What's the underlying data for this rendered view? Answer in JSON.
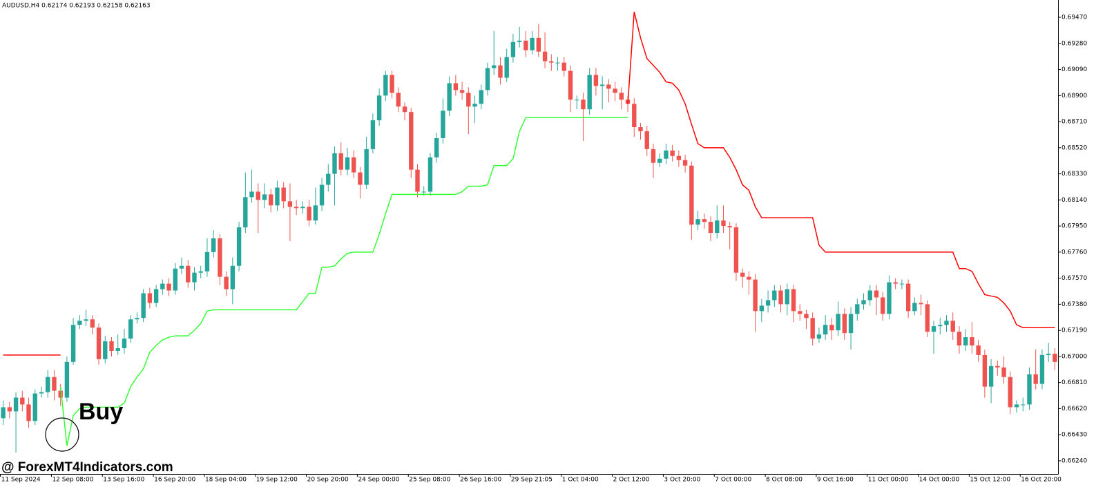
{
  "chart_data": {
    "type": "candlestick",
    "title": "AUDUSD,H4  0.62174 0.62193 0.62158 0.62163",
    "buy_label": "Buy",
    "watermark": "@ ForexMT4Indicators.com",
    "up_color": "#26a69a",
    "down_color": "#ef5350",
    "ylim": [
      0.66144,
      0.69596
    ],
    "yticks": [
      {
        "value": 0.6624,
        "label": "0.66240"
      },
      {
        "value": 0.6643,
        "label": "0.66430"
      },
      {
        "value": 0.6662,
        "label": "0.66620"
      },
      {
        "value": 0.6681,
        "label": "0.66810"
      },
      {
        "value": 0.67,
        "label": "0.67000"
      },
      {
        "value": 0.6719,
        "label": "0.67190"
      },
      {
        "value": 0.6738,
        "label": "0.67380"
      },
      {
        "value": 0.6757,
        "label": "0.67570"
      },
      {
        "value": 0.6776,
        "label": "0.67760"
      },
      {
        "value": 0.6795,
        "label": "0.67950"
      },
      {
        "value": 0.6814,
        "label": "0.68140"
      },
      {
        "value": 0.6833,
        "label": "0.68330"
      },
      {
        "value": 0.6852,
        "label": "0.68520"
      },
      {
        "value": 0.6871,
        "label": "0.68710"
      },
      {
        "value": 0.689,
        "label": "0.68900"
      },
      {
        "value": 0.6909,
        "label": "0.69090"
      },
      {
        "value": 0.6928,
        "label": "0.69280"
      },
      {
        "value": 0.6947,
        "label": "0.69470"
      }
    ],
    "categories": [
      "11 Sep 2024",
      null,
      null,
      null,
      null,
      null,
      null,
      null,
      "12 Sep 08:00",
      null,
      null,
      null,
      null,
      null,
      null,
      null,
      "13 Sep 16:00",
      null,
      null,
      null,
      null,
      null,
      null,
      null,
      "16 Sep 20:00",
      null,
      null,
      null,
      null,
      null,
      null,
      null,
      "18 Sep 04:00",
      null,
      null,
      null,
      null,
      null,
      null,
      null,
      "19 Sep 12:00",
      null,
      null,
      null,
      null,
      null,
      null,
      null,
      "20 Sep 20:00",
      null,
      null,
      null,
      null,
      null,
      null,
      null,
      "24 Sep 00:00",
      null,
      null,
      null,
      null,
      null,
      null,
      null,
      "25 Sep 08:00",
      null,
      null,
      null,
      null,
      null,
      null,
      null,
      "26 Sep 16:00",
      null,
      null,
      null,
      null,
      null,
      null,
      null,
      "29 Sep 21:05",
      null,
      null,
      null,
      null,
      null,
      null,
      null,
      "1 Oct 04:00",
      null,
      null,
      null,
      null,
      null,
      null,
      null,
      "2 Oct 12:00",
      null,
      null,
      null,
      null,
      null,
      null,
      null,
      "3 Oct 20:00",
      null,
      null,
      null,
      null,
      null,
      null,
      null,
      "7 Oct 00:00",
      null,
      null,
      null,
      null,
      null,
      null,
      null,
      "8 Oct 08:00",
      null,
      null,
      null,
      null,
      null,
      null,
      null,
      "9 Oct 16:00",
      null,
      null,
      null,
      null,
      null,
      null,
      null,
      "11 Oct 00:00",
      null,
      null,
      null,
      null,
      null,
      null,
      null,
      "14 Oct 00:00",
      null,
      null,
      null,
      null,
      null,
      null,
      null,
      "15 Oct 12:00",
      null,
      null,
      null,
      null,
      null,
      null,
      null,
      "16 Oct 20:00",
      null,
      null,
      null,
      null,
      null
    ],
    "open": [
      0.6655,
      0.6663,
      0.666,
      0.667,
      0.6665,
      0.6653,
      0.6673,
      0.6674,
      0.6685,
      0.6675,
      0.667,
      0.6696,
      0.6723,
      0.6726,
      0.6727,
      0.6721,
      0.6698,
      0.6711,
      0.6704,
      0.6706,
      0.6713,
      0.6727,
      0.6728,
      0.6746,
      0.6739,
      0.6749,
      0.6753,
      0.6748,
      0.6764,
      0.6766,
      0.6754,
      0.6761,
      0.6762,
      0.6776,
      0.6786,
      0.6758,
      0.6749,
      0.6766,
      0.6794,
      0.6816,
      0.682,
      0.6814,
      0.6818,
      0.681,
      0.6823,
      0.6813,
      0.6809,
      0.6808,
      0.6809,
      0.6799,
      0.681,
      0.6825,
      0.6833,
      0.6848,
      0.6836,
      0.6845,
      0.6834,
      0.6825,
      0.6851,
      0.6872,
      0.689,
      0.6905,
      0.6892,
      0.6882,
      0.6878,
      0.6836,
      0.682,
      0.682,
      0.6845,
      0.6859,
      0.6879,
      0.6899,
      0.6894,
      0.6892,
      0.6882,
      0.6884,
      0.6894,
      0.691,
      0.6912,
      0.6903,
      0.6918,
      0.6929,
      0.693,
      0.6923,
      0.6932,
      0.6922,
      0.6915,
      0.6914,
      0.6914,
      0.6908,
      0.6887,
      0.6887,
      0.688,
      0.6905,
      0.6897,
      0.6898,
      0.6895,
      0.6892,
      0.6887,
      0.6884,
      0.6867,
      0.6864,
      0.6851,
      0.6841,
      0.6844,
      0.685,
      0.6846,
      0.6843,
      0.6839,
      0.6796,
      0.68,
      0.6798,
      0.679,
      0.6799,
      0.6795,
      0.6794,
      0.6761,
      0.6758,
      0.6756,
      0.6733,
      0.6737,
      0.6741,
      0.6748,
      0.6738,
      0.6749,
      0.6733,
      0.6731,
      0.6728,
      0.6713,
      0.6716,
      0.6723,
      0.6719,
      0.6731,
      0.6717,
      0.6731,
      0.6738,
      0.6741,
      0.6748,
      0.6743,
      0.6731,
      0.6754,
      0.6753,
      0.6753,
      0.6733,
      0.6739,
      0.6738,
      0.6718,
      0.6722,
      0.6723,
      0.6726,
      0.6718,
      0.6708,
      0.6714,
      0.6708,
      0.6701,
      0.6678,
      0.6693,
      0.6692,
      0.6685,
      0.6663,
      0.6665,
      0.6665,
      0.6687,
      0.668,
      0.6701,
      0.6702
    ],
    "high": [
      0.6668,
      0.6667,
      0.6674,
      0.6675,
      0.667,
      0.6676,
      0.6678,
      0.669,
      0.669,
      0.668,
      0.67,
      0.6728,
      0.673,
      0.6734,
      0.673,
      0.6724,
      0.6715,
      0.6714,
      0.6716,
      0.672,
      0.673,
      0.6732,
      0.6749,
      0.675,
      0.6752,
      0.6756,
      0.6757,
      0.6768,
      0.6772,
      0.677,
      0.6765,
      0.6766,
      0.6786,
      0.6792,
      0.6789,
      0.6762,
      0.6772,
      0.6798,
      0.6834,
      0.6836,
      0.6826,
      0.6826,
      0.6822,
      0.6828,
      0.6827,
      0.6826,
      0.6814,
      0.6813,
      0.6814,
      0.6823,
      0.683,
      0.684,
      0.6853,
      0.6856,
      0.6852,
      0.685,
      0.6838,
      0.686,
      0.6877,
      0.6895,
      0.6908,
      0.6908,
      0.6896,
      0.6885,
      0.6881,
      0.684,
      0.6824,
      0.6848,
      0.6863,
      0.6888,
      0.6904,
      0.6905,
      0.69,
      0.6896,
      0.689,
      0.6898,
      0.6914,
      0.6937,
      0.6918,
      0.6924,
      0.6935,
      0.694,
      0.6937,
      0.6937,
      0.6942,
      0.6936,
      0.692,
      0.6918,
      0.6918,
      0.6912,
      0.689,
      0.6892,
      0.691,
      0.691,
      0.6904,
      0.6902,
      0.69,
      0.6896,
      0.689,
      0.6888,
      0.687,
      0.6868,
      0.6855,
      0.6848,
      0.6855,
      0.6854,
      0.685,
      0.6847,
      0.6842,
      0.6806,
      0.6804,
      0.6802,
      0.681,
      0.681,
      0.6798,
      0.6797,
      0.6764,
      0.6762,
      0.676,
      0.6742,
      0.6748,
      0.6752,
      0.6752,
      0.6753,
      0.6752,
      0.6738,
      0.6734,
      0.6732,
      0.6721,
      0.673,
      0.6728,
      0.674,
      0.6735,
      0.6736,
      0.6742,
      0.6746,
      0.6752,
      0.6752,
      0.6747,
      0.6759,
      0.6757,
      0.6756,
      0.6756,
      0.6743,
      0.6745,
      0.6741,
      0.6726,
      0.6728,
      0.673,
      0.6732,
      0.6722,
      0.672,
      0.6725,
      0.6712,
      0.6705,
      0.6698,
      0.6697,
      0.67,
      0.6689,
      0.6668,
      0.667,
      0.6692,
      0.6705,
      0.6705,
      0.671,
      0.6706
    ],
    "low": [
      0.665,
      0.6655,
      0.663,
      0.666,
      0.6648,
      0.665,
      0.667,
      0.667,
      0.6668,
      0.6664,
      0.6667,
      0.6694,
      0.672,
      0.6722,
      0.6716,
      0.6694,
      0.6695,
      0.67,
      0.6701,
      0.6702,
      0.671,
      0.6724,
      0.6725,
      0.6735,
      0.6736,
      0.6745,
      0.6744,
      0.6745,
      0.676,
      0.675,
      0.6748,
      0.6757,
      0.6758,
      0.6772,
      0.6752,
      0.6744,
      0.6738,
      0.6762,
      0.679,
      0.6812,
      0.679,
      0.6808,
      0.6805,
      0.6806,
      0.6808,
      0.6784,
      0.6803,
      0.6804,
      0.6795,
      0.6796,
      0.6806,
      0.682,
      0.681,
      0.6832,
      0.6832,
      0.683,
      0.6815,
      0.6822,
      0.6848,
      0.6868,
      0.6886,
      0.6888,
      0.6878,
      0.6872,
      0.683,
      0.6816,
      0.6817,
      0.6817,
      0.6841,
      0.6855,
      0.6875,
      0.689,
      0.6887,
      0.6862,
      0.687,
      0.688,
      0.689,
      0.6905,
      0.6898,
      0.69,
      0.6914,
      0.6925,
      0.6918,
      0.692,
      0.6918,
      0.691,
      0.6908,
      0.6908,
      0.6904,
      0.6878,
      0.688,
      0.6857,
      0.6876,
      0.689,
      0.688,
      0.6885,
      0.6886,
      0.688,
      0.6878,
      0.686,
      0.6858,
      0.6846,
      0.683,
      0.6838,
      0.684,
      0.6842,
      0.6838,
      0.6834,
      0.6785,
      0.6792,
      0.6793,
      0.6784,
      0.6786,
      0.679,
      0.6778,
      0.6755,
      0.675,
      0.6745,
      0.6718,
      0.6725,
      0.6732,
      0.6736,
      0.6732,
      0.673,
      0.6725,
      0.6726,
      0.672,
      0.6708,
      0.671,
      0.6712,
      0.6712,
      0.6715,
      0.6712,
      0.6705,
      0.6726,
      0.6734,
      0.6737,
      0.673,
      0.6726,
      0.6727,
      0.6749,
      0.6749,
      0.6728,
      0.673,
      0.673,
      0.6714,
      0.6702,
      0.6716,
      0.6718,
      0.6712,
      0.6702,
      0.6704,
      0.6702,
      0.6696,
      0.667,
      0.6666,
      0.6686,
      0.668,
      0.6658,
      0.6659,
      0.666,
      0.6661,
      0.6676,
      0.6676,
      0.6696,
      0.669
    ],
    "close": [
      0.6663,
      0.666,
      0.667,
      0.6665,
      0.6653,
      0.6673,
      0.6674,
      0.6685,
      0.6675,
      0.667,
      0.6696,
      0.6723,
      0.6726,
      0.6727,
      0.6721,
      0.6698,
      0.6711,
      0.6704,
      0.6706,
      0.6713,
      0.6727,
      0.6728,
      0.6746,
      0.6739,
      0.6749,
      0.6753,
      0.6748,
      0.6764,
      0.6766,
      0.6754,
      0.6761,
      0.6762,
      0.6776,
      0.6786,
      0.6758,
      0.6749,
      0.6766,
      0.6794,
      0.6816,
      0.682,
      0.6814,
      0.6818,
      0.681,
      0.6823,
      0.6813,
      0.6809,
      0.6808,
      0.6809,
      0.6799,
      0.681,
      0.6825,
      0.6833,
      0.6848,
      0.6836,
      0.6845,
      0.6834,
      0.6825,
      0.6851,
      0.6872,
      0.689,
      0.6905,
      0.6892,
      0.6882,
      0.6878,
      0.6836,
      0.682,
      0.682,
      0.6845,
      0.6859,
      0.6879,
      0.6899,
      0.6894,
      0.6892,
      0.6882,
      0.6884,
      0.6894,
      0.691,
      0.6912,
      0.6903,
      0.6918,
      0.6929,
      0.693,
      0.6923,
      0.6932,
      0.6922,
      0.6915,
      0.6914,
      0.6914,
      0.6908,
      0.6887,
      0.6887,
      0.688,
      0.6905,
      0.6897,
      0.6898,
      0.6895,
      0.6892,
      0.6887,
      0.6884,
      0.6867,
      0.6864,
      0.6851,
      0.6841,
      0.6844,
      0.685,
      0.6846,
      0.6843,
      0.6839,
      0.6796,
      0.68,
      0.6798,
      0.679,
      0.6799,
      0.6795,
      0.6794,
      0.6761,
      0.6758,
      0.6756,
      0.6733,
      0.6737,
      0.6741,
      0.6748,
      0.6738,
      0.6749,
      0.6733,
      0.6731,
      0.6728,
      0.6713,
      0.6716,
      0.6723,
      0.6719,
      0.6731,
      0.6717,
      0.6731,
      0.6738,
      0.6741,
      0.6748,
      0.6743,
      0.6731,
      0.6754,
      0.6753,
      0.6753,
      0.6733,
      0.6739,
      0.6738,
      0.6718,
      0.6722,
      0.6723,
      0.6726,
      0.6718,
      0.6708,
      0.6714,
      0.6708,
      0.6701,
      0.6678,
      0.6693,
      0.6692,
      0.6685,
      0.6663,
      0.6665,
      0.6665,
      0.6687,
      0.668,
      0.6701,
      0.6702,
      0.6696
    ],
    "lines": [
      {
        "color": "#33ff33",
        "values": [
          null,
          null,
          null,
          null,
          null,
          null,
          null,
          null,
          null,
          0.6678,
          0.6635,
          0.6657,
          0.6662,
          0.6663,
          0.6663,
          0.6663,
          0.6663,
          0.6663,
          0.6663,
          0.6666,
          0.6678,
          0.6685,
          0.6691,
          0.6703,
          0.6708,
          0.6712,
          0.6714,
          0.6715,
          0.6715,
          0.6715,
          0.6719,
          0.6724,
          0.6733,
          0.6734,
          0.6734,
          0.6734,
          0.6734,
          0.6734,
          0.6734,
          0.6734,
          0.6734,
          0.6734,
          0.6734,
          0.6734,
          0.6734,
          0.6734,
          0.6734,
          0.674,
          0.6746,
          0.6746,
          0.6765,
          0.6765,
          0.6766,
          0.6771,
          0.6775,
          0.6776,
          0.6776,
          0.6776,
          0.6776,
          0.6789,
          0.6804,
          0.6818,
          0.6818,
          0.6818,
          0.6818,
          0.6818,
          0.6818,
          0.6818,
          0.6818,
          0.6818,
          0.6818,
          0.6818,
          0.682,
          0.6824,
          0.6824,
          0.6824,
          0.6825,
          0.6839,
          0.6839,
          0.6839,
          0.6844,
          0.6864,
          0.6874,
          0.6874,
          0.6874,
          0.6874,
          0.6874,
          0.6874,
          0.6874,
          0.6874,
          0.6874,
          0.6874,
          0.6874,
          0.6874,
          0.6874,
          0.6874,
          0.6874,
          0.6874,
          0.6874,
          null,
          null,
          null,
          null,
          null,
          null,
          null,
          null,
          null,
          null,
          null,
          null,
          null,
          null,
          null,
          null,
          null,
          null,
          null,
          null,
          null,
          null,
          null,
          null,
          null,
          null,
          null,
          null,
          null,
          null,
          null,
          null,
          null,
          null,
          null,
          null,
          null,
          null,
          null,
          null,
          null,
          null,
          null,
          null,
          null,
          null,
          null,
          null,
          null,
          null,
          null,
          null,
          null,
          null,
          null,
          null,
          null,
          null,
          null,
          null,
          null,
          null,
          null,
          null,
          null,
          null,
          null
        ]
      },
      {
        "color": "#ff0000",
        "values": [
          0.6701,
          0.6701,
          0.6701,
          0.6701,
          0.6701,
          0.6701,
          0.6701,
          0.6701,
          0.6701,
          0.6701,
          null,
          null,
          null,
          null,
          null,
          null,
          null,
          null,
          null,
          null,
          null,
          null,
          null,
          null,
          null,
          null,
          null,
          null,
          null,
          null,
          null,
          null,
          null,
          null,
          null,
          null,
          null,
          null,
          null,
          null,
          null,
          null,
          null,
          null,
          null,
          null,
          null,
          null,
          null,
          null,
          null,
          null,
          null,
          null,
          null,
          null,
          null,
          null,
          null,
          null,
          null,
          null,
          null,
          null,
          null,
          null,
          null,
          null,
          null,
          null,
          null,
          null,
          null,
          null,
          null,
          null,
          null,
          null,
          null,
          null,
          null,
          null,
          null,
          null,
          null,
          null,
          null,
          null,
          null,
          null,
          null,
          null,
          null,
          null,
          null,
          null,
          null,
          null,
          0.6884,
          0.6951,
          0.6932,
          0.6917,
          0.6912,
          0.6907,
          0.69,
          0.6899,
          0.6894,
          0.6884,
          0.6869,
          0.6855,
          0.6852,
          0.6852,
          0.6852,
          0.6852,
          0.6845,
          0.6836,
          0.6825,
          0.6821,
          0.6809,
          0.6801,
          0.6801,
          0.6801,
          0.6801,
          0.6801,
          0.6801,
          0.6801,
          0.6801,
          0.6801,
          0.6781,
          0.6776,
          0.6776,
          0.6776,
          0.6776,
          0.6776,
          0.6776,
          0.6776,
          0.6776,
          0.6776,
          0.6776,
          0.6776,
          0.6776,
          0.6776,
          0.6776,
          0.6776,
          0.6776,
          0.6776,
          0.6776,
          0.6776,
          0.6776,
          0.6776,
          0.6764,
          0.6764,
          0.6762,
          0.6753,
          0.6745,
          0.6744,
          0.6743,
          0.6739,
          0.6733,
          0.6723,
          0.6721,
          0.6721,
          0.6721,
          0.6721,
          0.6721,
          0.6721
        ]
      }
    ]
  }
}
